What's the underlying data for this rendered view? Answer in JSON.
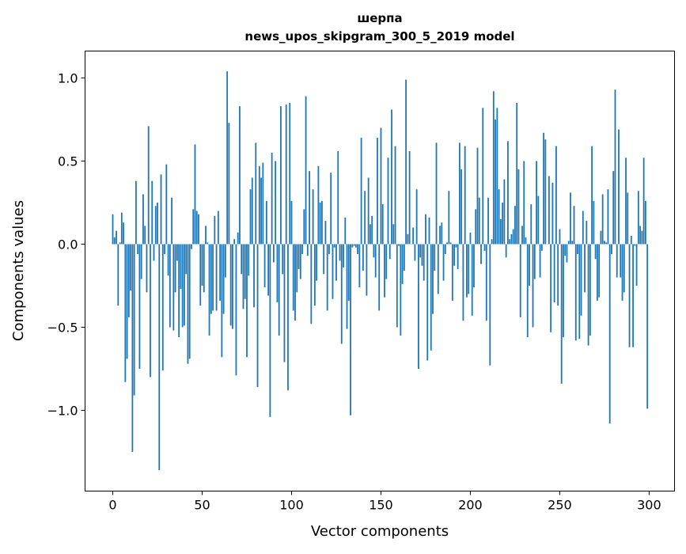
{
  "chart_data": {
    "type": "bar",
    "title": "шерпа",
    "subtitle": "news_upos_skipgram_300_5_2019 model",
    "xlabel": "Vector components",
    "ylabel": "Components values",
    "xlim": [
      -15.5,
      314.2
    ],
    "ylim": [
      -1.486,
      1.162
    ],
    "xticks": [
      0,
      50,
      100,
      150,
      200,
      250,
      300
    ],
    "xtick_labels": [
      "0",
      "50",
      "100",
      "150",
      "200",
      "250",
      "300"
    ],
    "yticks": [
      1.0,
      0.5,
      0.0,
      -0.5,
      -1.0
    ],
    "ytick_labels": [
      "1.0",
      "0.5",
      "0.0",
      "−0.5",
      "−1.0"
    ],
    "grid": false,
    "bar_color": "#1f77b4",
    "values": [
      0.18,
      0.04,
      0.08,
      -0.37,
      0.01,
      0.19,
      0.13,
      -0.83,
      -0.69,
      -0.44,
      -0.28,
      -1.25,
      -0.91,
      0.38,
      -0.06,
      -0.75,
      -0.21,
      0.3,
      0.11,
      -0.29,
      0.71,
      -0.8,
      0.38,
      -0.1,
      0.23,
      0.25,
      -1.36,
      0.42,
      -0.76,
      -0.06,
      0.48,
      -0.19,
      -0.5,
      0.28,
      -0.52,
      -0.29,
      -0.1,
      -0.56,
      -0.27,
      -0.5,
      -0.49,
      -0.18,
      -0.72,
      -0.69,
      -0.03,
      0.21,
      0.6,
      0.2,
      0.18,
      -0.37,
      -0.25,
      -0.29,
      0.11,
      0.01,
      -0.55,
      -0.42,
      -0.4,
      0.17,
      -0.4,
      0.2,
      -0.34,
      -0.68,
      -0.42,
      -0.2,
      1.04,
      0.73,
      -0.49,
      -0.51,
      0.03,
      -0.79,
      0.07,
      0.83,
      -0.18,
      -0.39,
      -0.33,
      -0.68,
      -0.19,
      0.33,
      0.4,
      -0.38,
      0.61,
      -0.86,
      0.47,
      0.4,
      0.49,
      -0.26,
      0.26,
      -0.31,
      -1.04,
      0.55,
      -0.11,
      0.5,
      -0.35,
      -0.55,
      0.83,
      -0.18,
      -0.71,
      0.84,
      -0.88,
      0.85,
      0.26,
      -0.4,
      -0.46,
      -0.29,
      -0.15,
      -0.21,
      -0.06,
      0.21,
      0.89,
      -0.07,
      0.44,
      -0.48,
      0.33,
      -0.37,
      -0.22,
      0.47,
      0.25,
      0.26,
      -0.18,
      0.14,
      -0.4,
      -0.06,
      0.43,
      -0.33,
      -0.02,
      -0.22,
      0.56,
      -0.1,
      -0.6,
      -0.14,
      0.16,
      -0.51,
      -0.34,
      -1.03,
      -0.02,
      -0.01,
      -0.02,
      -0.06,
      -0.26,
      0.64,
      -0.16,
      0.32,
      -0.31,
      0.4,
      0.12,
      0.17,
      -0.08,
      -0.2,
      0.64,
      -0.4,
      0.7,
      0.24,
      -0.32,
      -0.21,
      0.52,
      -0.09,
      0.81,
      0.12,
      0.59,
      -0.5,
      -0.01,
      -0.55,
      -0.24,
      -0.16,
      0.99,
      0.06,
      0.56,
      0.0,
      0.1,
      -0.1,
      0.33,
      -0.75,
      -0.08,
      -0.13,
      -0.22,
      0.18,
      -0.7,
      0.16,
      -0.64,
      -0.42,
      -0.16,
      0.61,
      -0.3,
      0.11,
      0.13,
      -0.22,
      -0.06,
      0.01,
      0.32,
      0.01,
      -0.34,
      -0.13,
      -0.02,
      -0.15,
      0.61,
      0.45,
      -0.46,
      0.59,
      -0.32,
      -0.3,
      0.07,
      -0.43,
      -0.26,
      0.21,
      0.58,
      0.28,
      -0.12,
      0.82,
      -0.04,
      -0.46,
      0.28,
      -0.73,
      0.03,
      0.92,
      0.75,
      0.82,
      0.33,
      0.15,
      0.25,
      0.39,
      -0.08,
      0.62,
      0.03,
      0.06,
      0.09,
      0.23,
      0.85,
      0.45,
      -0.44,
      0.11,
      0.5,
      0.04,
      -0.56,
      -0.25,
      0.24,
      -0.5,
      -0.21,
      0.5,
      0.29,
      -0.2,
      -0.04,
      0.67,
      0.63,
      0.0,
      0.41,
      -0.53,
      0.37,
      -0.35,
      0.59,
      -0.37,
      0.09,
      -0.84,
      -0.56,
      -0.07,
      -0.11,
      0.02,
      0.31,
      0.02,
      0.23,
      -0.58,
      -0.06,
      -0.57,
      -0.43,
      0.2,
      -0.29,
      0.14,
      -0.61,
      -0.55,
      0.59,
      0.26,
      -0.09,
      -0.34,
      -0.32,
      0.08,
      0.3,
      0.02,
      0.01,
      0.33,
      -1.08,
      -0.06,
      0.44,
      0.93,
      -0.2,
      0.69,
      -0.2,
      -0.34,
      -0.29,
      0.52,
      0.31,
      -0.62,
      0.05,
      -0.62,
      -0.01,
      -0.25,
      0.32,
      0.11,
      0.08,
      0.52,
      0.26,
      -0.99
    ]
  }
}
